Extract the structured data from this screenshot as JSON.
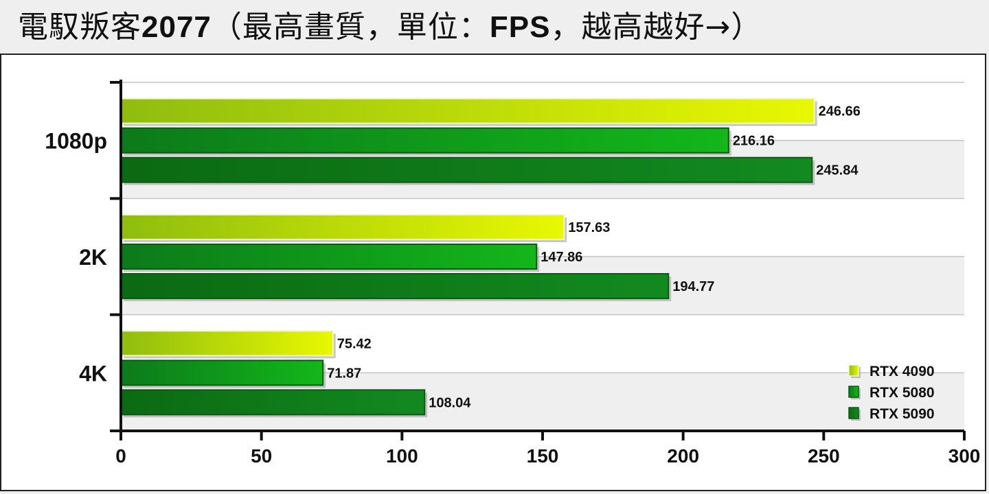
{
  "title_prefix": "電馭叛客",
  "title_year": "2077",
  "title_open": "（最高畫質，單位：",
  "title_unit": "FPS",
  "title_close": "，越高越好→）",
  "colors": {
    "RTX 4090": [
      "#8fbd0f",
      "#e8f800"
    ],
    "RTX 5080": [
      "#0c7a1a",
      "#13b71a"
    ],
    "RTX 5090": [
      "#0b6a12",
      "#128a20"
    ]
  },
  "chart_data": {
    "type": "bar",
    "orientation": "horizontal",
    "categories": [
      "1080p",
      "2K",
      "4K"
    ],
    "series": [
      {
        "name": "RTX 4090",
        "values": [
          246.66,
          157.63,
          75.42
        ]
      },
      {
        "name": "RTX 5080",
        "values": [
          216.16,
          147.86,
          71.87
        ]
      },
      {
        "name": "RTX 5090",
        "values": [
          245.84,
          194.77,
          108.04
        ]
      }
    ],
    "xlim": [
      0,
      300
    ],
    "xticks": [
      "0",
      "50",
      "100",
      "150",
      "200",
      "250",
      "300"
    ],
    "grid": true,
    "legend_position": "bottom-right"
  }
}
